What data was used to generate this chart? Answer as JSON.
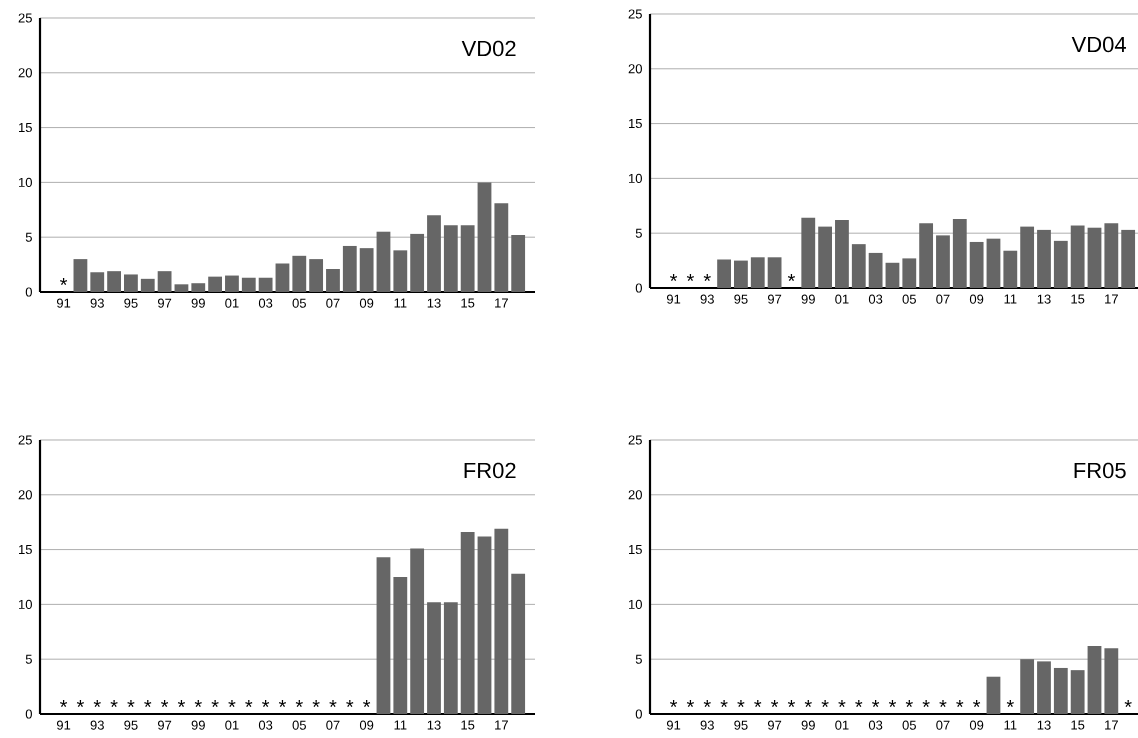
{
  "chart_data": [
    {
      "type": "bar",
      "title": "VD02",
      "color": "#666666",
      "grid": "y",
      "ylim": [
        0,
        25
      ],
      "yticks": [
        0,
        5,
        10,
        15,
        20,
        25
      ],
      "categories": [
        "91",
        null,
        "93",
        null,
        "95",
        null,
        "97",
        null,
        "99",
        null,
        "01",
        null,
        "03",
        null,
        "05",
        null,
        "07",
        null,
        "09",
        null,
        "11",
        null,
        "13",
        null,
        "15",
        null,
        "17",
        null
      ],
      "values": [
        null,
        3.0,
        1.8,
        1.9,
        1.6,
        1.2,
        1.9,
        0.7,
        0.8,
        1.4,
        1.5,
        1.3,
        1.3,
        2.6,
        3.3,
        3.0,
        2.1,
        4.2,
        4.0,
        5.5,
        3.8,
        5.3,
        7.0,
        6.1,
        6.1,
        10.0,
        8.1,
        5.2
      ],
      "value_labels": [
        "*",
        null,
        null,
        null,
        null,
        null,
        null,
        null,
        null,
        null,
        null,
        null,
        null,
        null,
        null,
        null,
        null,
        null,
        null,
        null,
        null,
        null,
        null,
        null,
        null,
        null,
        null,
        null
      ]
    },
    {
      "type": "bar",
      "title": "VD04",
      "color": "#666666",
      "grid": "y",
      "ylim": [
        0,
        25
      ],
      "yticks": [
        0,
        5,
        10,
        15,
        20,
        25
      ],
      "categories": [
        "91",
        null,
        "93",
        null,
        "95",
        null,
        "97",
        null,
        "99",
        null,
        "01",
        null,
        "03",
        null,
        "05",
        null,
        "07",
        null,
        "09",
        null,
        "11",
        null,
        "13",
        null,
        "15",
        null,
        "17",
        null
      ],
      "values": [
        null,
        null,
        null,
        2.6,
        2.5,
        2.8,
        2.8,
        null,
        6.4,
        5.6,
        6.2,
        4.0,
        3.2,
        2.3,
        2.7,
        5.9,
        4.8,
        6.3,
        4.2,
        4.5,
        3.4,
        5.6,
        5.3,
        4.3,
        5.7,
        5.5,
        5.9,
        5.3
      ],
      "value_labels": [
        "*",
        "*",
        "*",
        null,
        null,
        null,
        null,
        "*",
        null,
        null,
        null,
        null,
        null,
        null,
        null,
        null,
        null,
        null,
        null,
        null,
        null,
        null,
        null,
        null,
        null,
        null,
        null,
        null
      ]
    },
    {
      "type": "bar",
      "title": "FR02",
      "color": "#666666",
      "grid": "y",
      "ylim": [
        0,
        25
      ],
      "yticks": [
        0,
        5,
        10,
        15,
        20,
        25
      ],
      "categories": [
        "91",
        null,
        "93",
        null,
        "95",
        null,
        "97",
        null,
        "99",
        null,
        "01",
        null,
        "03",
        null,
        "05",
        null,
        "07",
        null,
        "09",
        null,
        "11",
        null,
        "13",
        null,
        "15",
        null,
        "17",
        null
      ],
      "values": [
        null,
        null,
        null,
        null,
        null,
        null,
        null,
        null,
        null,
        null,
        null,
        null,
        null,
        null,
        null,
        null,
        null,
        null,
        null,
        14.3,
        12.5,
        15.1,
        10.2,
        10.2,
        16.6,
        16.2,
        16.9,
        12.8
      ],
      "value_labels": [
        "*",
        "*",
        "*",
        "*",
        "*",
        "*",
        "*",
        "*",
        "*",
        "*",
        "*",
        "*",
        "*",
        "*",
        "*",
        "*",
        "*",
        "*",
        "*",
        null,
        null,
        null,
        null,
        null,
        null,
        null,
        null,
        null
      ]
    },
    {
      "type": "bar",
      "title": "FR05",
      "color": "#666666",
      "grid": "y",
      "ylim": [
        0,
        25
      ],
      "yticks": [
        0,
        5,
        10,
        15,
        20,
        25
      ],
      "categories": [
        "91",
        null,
        "93",
        null,
        "95",
        null,
        "97",
        null,
        "99",
        null,
        "01",
        null,
        "03",
        null,
        "05",
        null,
        "07",
        null,
        "09",
        null,
        "11",
        null,
        "13",
        null,
        "15",
        null,
        "17",
        null
      ],
      "values": [
        null,
        null,
        null,
        null,
        null,
        null,
        null,
        null,
        null,
        null,
        null,
        null,
        null,
        null,
        null,
        null,
        null,
        null,
        null,
        3.4,
        null,
        5.0,
        4.8,
        4.2,
        4.0,
        6.2,
        6.0,
        null
      ],
      "value_labels": [
        "*",
        "*",
        "*",
        "*",
        "*",
        "*",
        "*",
        "*",
        "*",
        "*",
        "*",
        "*",
        "*",
        "*",
        "*",
        "*",
        "*",
        "*",
        "*",
        null,
        "*",
        null,
        null,
        null,
        null,
        null,
        null,
        "*"
      ]
    }
  ]
}
